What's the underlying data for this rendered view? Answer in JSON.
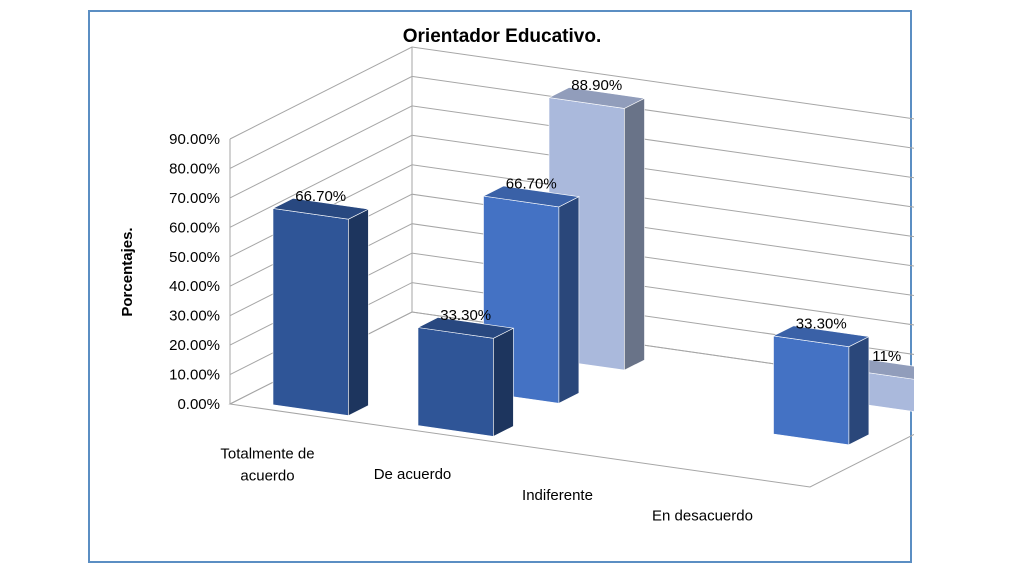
{
  "chart_data": {
    "type": "bar",
    "title": "Orientador Educativo.",
    "ylabel": "Porcentajes.",
    "xlabel": "",
    "ylim": [
      0,
      90
    ],
    "yticks": [
      "0.00%",
      "10.00%",
      "20.00%",
      "30.00%",
      "40.00%",
      "50.00%",
      "60.00%",
      "70.00%",
      "80.00%",
      "90.00%"
    ],
    "categories": [
      "Totalmente de acuerdo",
      "De acuerdo",
      "Indiferente",
      "En desacuerdo"
    ],
    "category_lines": [
      [
        "Totalmente de",
        "acuerdo"
      ],
      [
        "De acuerdo"
      ],
      [
        "Indiferente"
      ],
      [
        "En desacuerdo"
      ]
    ],
    "series": [
      {
        "values": [
          66.7,
          33.3,
          null,
          null
        ],
        "labels": [
          "66.70%",
          "33.30%",
          "",
          ""
        ],
        "color": "#2f5597"
      },
      {
        "values": [
          null,
          66.7,
          null,
          33.3
        ],
        "labels": [
          "",
          "66.70%",
          "",
          "33.30%"
        ],
        "color": "#4472c4"
      },
      {
        "values": [
          null,
          88.9,
          null,
          11
        ],
        "labels": [
          "",
          "88.90%",
          "",
          "11%"
        ],
        "color": "#aab9dc"
      }
    ],
    "grid": true,
    "legend": "none"
  }
}
